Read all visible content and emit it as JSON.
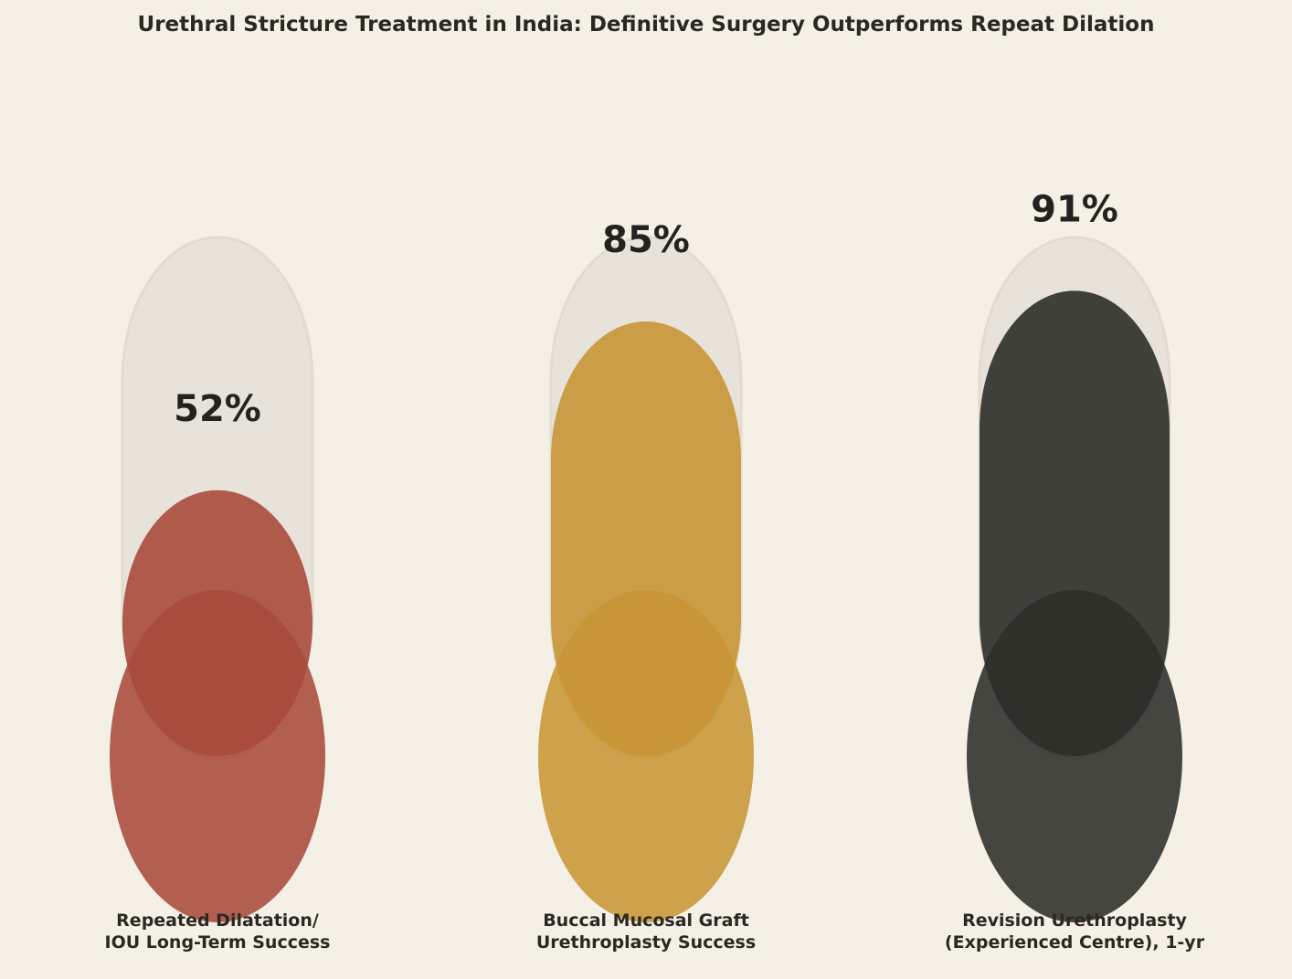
{
  "chart_data": {
    "type": "bar",
    "style": "thermometer",
    "title": "Urethral Stricture Treatment in India: Definitive Surgery Outperforms Repeat Dilation",
    "value_unit": "%",
    "ylim": [
      0,
      100
    ],
    "grid": false,
    "legend": "none",
    "categories": [
      [
        "Repeated Dilatation/",
        "IOU Long-Term Success"
      ],
      [
        "Buccal Mucosal Graft",
        "Urethroplasty Success"
      ],
      [
        "Revision Urethroplasty",
        "(Experienced Centre), 1-yr"
      ]
    ],
    "values": [
      52,
      85,
      91
    ],
    "colors": [
      "#a94a3b",
      "#c89535",
      "#2e2d29"
    ],
    "track_color": "#e8e3da"
  }
}
